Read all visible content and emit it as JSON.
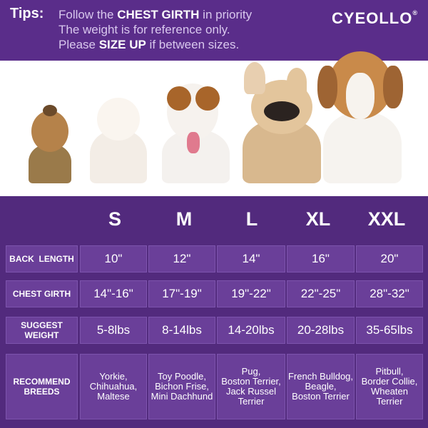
{
  "header": {
    "tips_label": "Tips:",
    "line1_pre": "Follow the ",
    "line1_bold": "CHEST GIRTH",
    "line1_post": " in priority",
    "line2": "The weight is for reference only.",
    "line3_pre": "Please ",
    "line3_bold": "SIZE UP",
    "line3_post": " if between sizes.",
    "brand": "CYEOLLO",
    "brand_mark": "®"
  },
  "photos": {
    "dogs": [
      "yorkie-photo",
      "pomeranian-photo",
      "jack-russell-photo",
      "french-bulldog-photo",
      "beagle-photo"
    ]
  },
  "table": {
    "sizes": [
      "S",
      "M",
      "L",
      "XL",
      "XXL"
    ],
    "rows": [
      {
        "label": "BACK  LENGTH",
        "values": [
          "10\"",
          "12\"",
          "14\"",
          "16\"",
          "20\""
        ]
      },
      {
        "label": "CHEST GIRTH",
        "values": [
          "14\"-16\"",
          "17\"-19\"",
          "19\"-22\"",
          "22\"-25\"",
          "28\"-32\""
        ]
      },
      {
        "label": "SUGGEST WEIGHT",
        "values": [
          "5-8lbs",
          "8-14lbs",
          "14-20lbs",
          "20-28lbs",
          "35-65lbs"
        ]
      },
      {
        "label": "RECOMMEND BREEDS",
        "values": [
          "Yorkie,\nChihuahua,\nMaltese",
          "Toy Poodle,\nBichon Frise,\nMini Dachhund",
          "Pug,\nBoston Terrier,\nJack Russel\nTerrier",
          "French Bulldog,\nBeagle,\nBoston Terrier",
          "Pitbull,\nBorder Collie,\nWheaten Terrier"
        ]
      }
    ]
  },
  "colors": {
    "header_bg": "#5a2d8a",
    "table_bg": "#522a7d",
    "cell_bg": "#6a3f99",
    "text": "#ffffff"
  }
}
